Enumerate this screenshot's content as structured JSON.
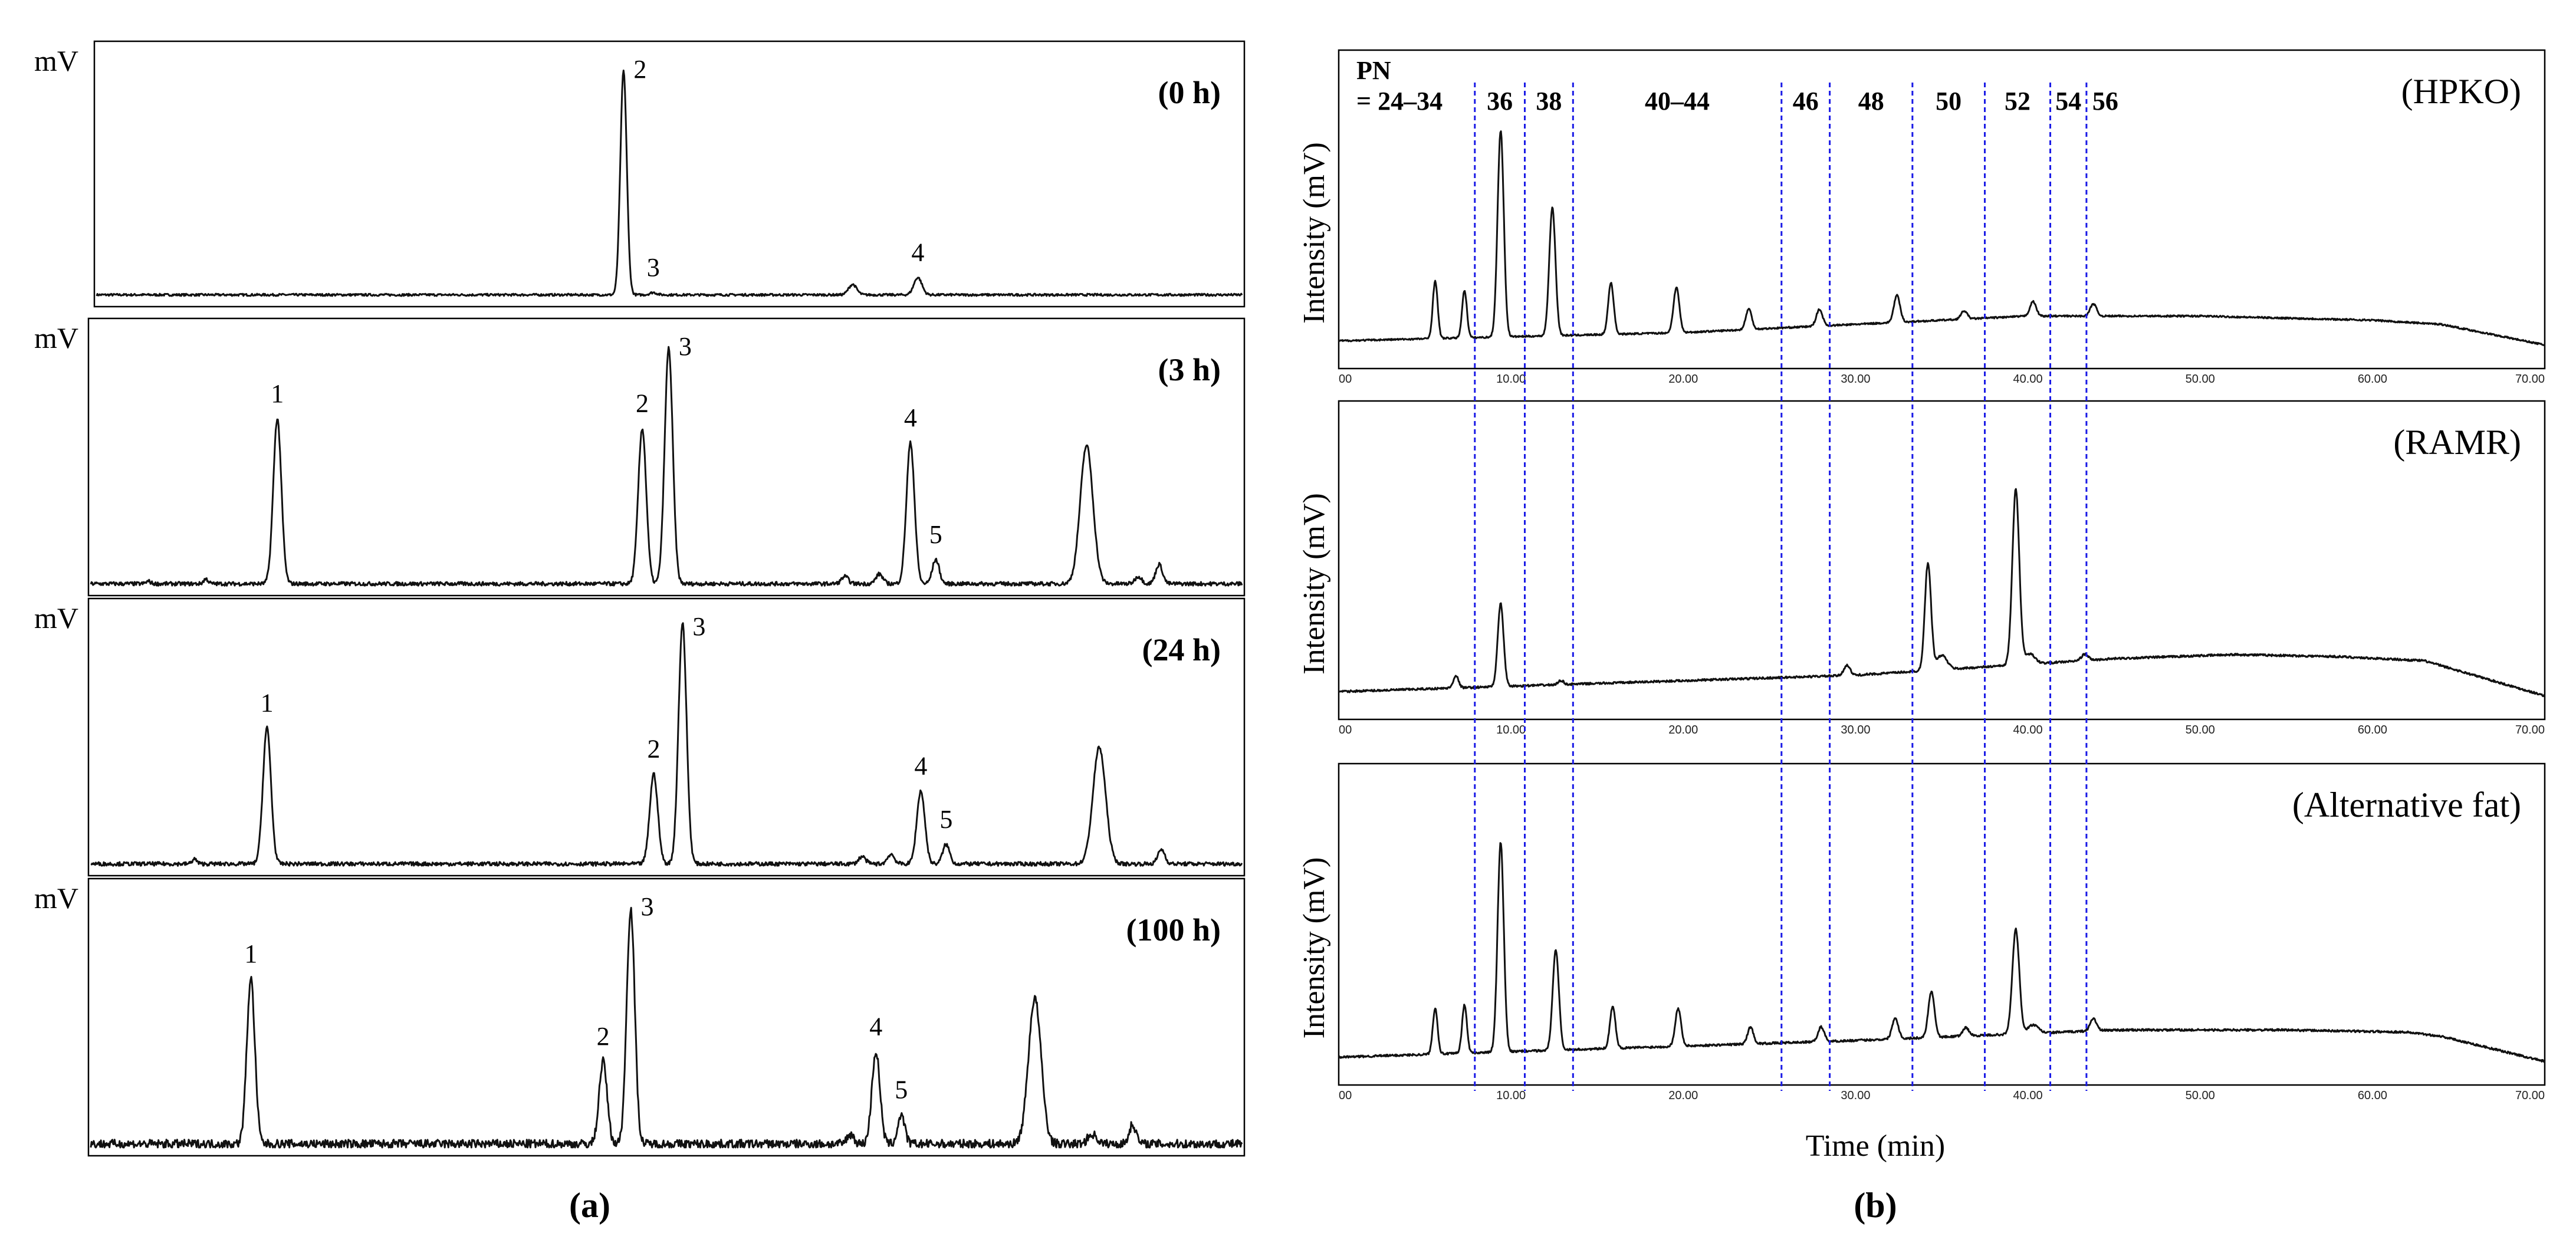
{
  "chart_data": [
    {
      "type": "line",
      "panel": "(a)",
      "caption": "(a)",
      "ylabel": "mV",
      "subplots": [
        {
          "label": "(0 h)",
          "noise": 0.005,
          "peaks": [
            {
              "x": 0.46,
              "h": 0.97,
              "w": 0.0028,
              "label": "2"
            },
            {
              "x": 0.486,
              "h": 0.01,
              "w": 0.003,
              "label": "3"
            },
            {
              "x": 0.66,
              "h": 0.045,
              "w": 0.0035,
              "label": ""
            },
            {
              "x": 0.717,
              "h": 0.075,
              "w": 0.0035,
              "label": "4"
            }
          ]
        },
        {
          "label": "(3 h)",
          "noise": 0.008,
          "peaks": [
            {
              "x": 0.05,
              "h": 0.01,
              "w": 0.002,
              "label": ""
            },
            {
              "x": 0.1,
              "h": 0.02,
              "w": 0.002,
              "label": ""
            },
            {
              "x": 0.162,
              "h": 0.68,
              "w": 0.0035,
              "label": "1"
            },
            {
              "x": 0.479,
              "h": 0.64,
              "w": 0.0035,
              "label": "2"
            },
            {
              "x": 0.502,
              "h": 0.97,
              "w": 0.0035,
              "label": "3"
            },
            {
              "x": 0.655,
              "h": 0.03,
              "w": 0.003,
              "label": ""
            },
            {
              "x": 0.685,
              "h": 0.04,
              "w": 0.003,
              "label": ""
            },
            {
              "x": 0.712,
              "h": 0.58,
              "w": 0.0035,
              "label": "4"
            },
            {
              "x": 0.734,
              "h": 0.1,
              "w": 0.003,
              "label": "5"
            },
            {
              "x": 0.865,
              "h": 0.57,
              "w": 0.0055,
              "label": ""
            },
            {
              "x": 0.91,
              "h": 0.03,
              "w": 0.003,
              "label": ""
            },
            {
              "x": 0.928,
              "h": 0.08,
              "w": 0.003,
              "label": ""
            }
          ]
        },
        {
          "label": "(24 h)",
          "noise": 0.008,
          "peaks": [
            {
              "x": 0.09,
              "h": 0.02,
              "w": 0.002,
              "label": ""
            },
            {
              "x": 0.153,
              "h": 0.56,
              "w": 0.0035,
              "label": "1"
            },
            {
              "x": 0.489,
              "h": 0.37,
              "w": 0.0035,
              "label": "2"
            },
            {
              "x": 0.514,
              "h": 0.99,
              "w": 0.0035,
              "label": "3"
            },
            {
              "x": 0.67,
              "h": 0.03,
              "w": 0.003,
              "label": ""
            },
            {
              "x": 0.695,
              "h": 0.04,
              "w": 0.003,
              "label": ""
            },
            {
              "x": 0.721,
              "h": 0.3,
              "w": 0.0035,
              "label": "4"
            },
            {
              "x": 0.743,
              "h": 0.08,
              "w": 0.003,
              "label": "5"
            },
            {
              "x": 0.876,
              "h": 0.48,
              "w": 0.0055,
              "label": ""
            },
            {
              "x": 0.93,
              "h": 0.06,
              "w": 0.003,
              "label": ""
            }
          ]
        },
        {
          "label": "(100 h)",
          "noise": 0.018,
          "peaks": [
            {
              "x": 0.139,
              "h": 0.68,
              "w": 0.0035,
              "label": "1"
            },
            {
              "x": 0.445,
              "h": 0.34,
              "w": 0.0035,
              "label": "2"
            },
            {
              "x": 0.469,
              "h": 0.97,
              "w": 0.0035,
              "label": "3"
            },
            {
              "x": 0.66,
              "h": 0.04,
              "w": 0.003,
              "label": ""
            },
            {
              "x": 0.682,
              "h": 0.38,
              "w": 0.0035,
              "label": "4"
            },
            {
              "x": 0.704,
              "h": 0.12,
              "w": 0.003,
              "label": "5"
            },
            {
              "x": 0.82,
              "h": 0.6,
              "w": 0.0055,
              "label": ""
            },
            {
              "x": 0.87,
              "h": 0.04,
              "w": 0.004,
              "label": ""
            },
            {
              "x": 0.905,
              "h": 0.08,
              "w": 0.003,
              "label": ""
            }
          ]
        }
      ]
    },
    {
      "type": "line",
      "panel": "(b)",
      "caption": "(b)",
      "xlabel": "Time (min)",
      "ylabel": "Intensity (mV)",
      "xlim": [
        0,
        70
      ],
      "xticks": [
        "00",
        "10.00",
        "20.00",
        "30.00",
        "40.00",
        "50.00",
        "60.00",
        "70.00"
      ],
      "pn_prefix": "PN",
      "pn_regions": [
        "= 24–34",
        "36",
        "38",
        "40–44",
        "46",
        "48",
        "50",
        "52",
        "54",
        "56"
      ],
      "dividers_min": [
        7.9,
        10.8,
        13.6,
        25.7,
        28.5,
        33.3,
        37.5,
        41.3,
        43.4
      ],
      "subplots": [
        {
          "label": "(HPKO)",
          "noise": 0.004,
          "baseline": [
            [
              0,
              0.02
            ],
            [
              20,
              0.06
            ],
            [
              40,
              0.14
            ],
            [
              50,
              0.14
            ],
            [
              60,
              0.12
            ],
            [
              64,
              0.1
            ],
            [
              70,
              0.0
            ]
          ],
          "peaks": [
            {
              "t": 5.6,
              "h": 0.28,
              "w": 0.14
            },
            {
              "t": 7.3,
              "h": 0.23,
              "w": 0.14
            },
            {
              "t": 9.4,
              "h": 1.0,
              "w": 0.18
            },
            {
              "t": 12.4,
              "h": 0.62,
              "w": 0.18
            },
            {
              "t": 15.8,
              "h": 0.25,
              "w": 0.16
            },
            {
              "t": 19.6,
              "h": 0.22,
              "w": 0.17
            },
            {
              "t": 23.8,
              "h": 0.1,
              "w": 0.17
            },
            {
              "t": 27.9,
              "h": 0.08,
              "w": 0.18
            },
            {
              "t": 32.4,
              "h": 0.13,
              "w": 0.18
            },
            {
              "t": 36.3,
              "h": 0.04,
              "w": 0.18
            },
            {
              "t": 40.3,
              "h": 0.07,
              "w": 0.18
            },
            {
              "t": 43.8,
              "h": 0.06,
              "w": 0.18
            }
          ]
        },
        {
          "label": "(RAMR)",
          "noise": 0.005,
          "baseline": [
            [
              0,
              0.02
            ],
            [
              30,
              0.1
            ],
            [
              45,
              0.18
            ],
            [
              52,
              0.2
            ],
            [
              58,
              0.19
            ],
            [
              63,
              0.17
            ],
            [
              70,
              0.0
            ]
          ],
          "peaks": [
            {
              "t": 6.8,
              "h": 0.06,
              "w": 0.15
            },
            {
              "t": 9.4,
              "h": 0.4,
              "w": 0.17
            },
            {
              "t": 12.9,
              "h": 0.02,
              "w": 0.15
            },
            {
              "t": 29.5,
              "h": 0.05,
              "w": 0.18
            },
            {
              "t": 34.2,
              "h": 0.52,
              "w": 0.18
            },
            {
              "t": 35.0,
              "h": 0.07,
              "w": 0.3
            },
            {
              "t": 39.3,
              "h": 0.85,
              "w": 0.2
            },
            {
              "t": 40.1,
              "h": 0.05,
              "w": 0.3
            },
            {
              "t": 43.3,
              "h": 0.03,
              "w": 0.2
            }
          ]
        },
        {
          "label": "(Alternative fat)",
          "noise": 0.005,
          "baseline": [
            [
              0,
              0.02
            ],
            [
              30,
              0.1
            ],
            [
              45,
              0.15
            ],
            [
              55,
              0.15
            ],
            [
              62,
              0.14
            ],
            [
              64,
              0.12
            ],
            [
              70,
              0.0
            ]
          ],
          "peaks": [
            {
              "t": 5.6,
              "h": 0.22,
              "w": 0.14
            },
            {
              "t": 7.3,
              "h": 0.23,
              "w": 0.14
            },
            {
              "t": 9.4,
              "h": 1.0,
              "w": 0.18
            },
            {
              "t": 12.6,
              "h": 0.48,
              "w": 0.18
            },
            {
              "t": 15.9,
              "h": 0.2,
              "w": 0.16
            },
            {
              "t": 19.7,
              "h": 0.18,
              "w": 0.17
            },
            {
              "t": 23.9,
              "h": 0.08,
              "w": 0.17
            },
            {
              "t": 28.0,
              "h": 0.07,
              "w": 0.18
            },
            {
              "t": 32.3,
              "h": 0.1,
              "w": 0.18
            },
            {
              "t": 34.4,
              "h": 0.22,
              "w": 0.18
            },
            {
              "t": 36.4,
              "h": 0.04,
              "w": 0.18
            },
            {
              "t": 39.3,
              "h": 0.5,
              "w": 0.2
            },
            {
              "t": 40.3,
              "h": 0.04,
              "w": 0.3
            },
            {
              "t": 43.8,
              "h": 0.06,
              "w": 0.18
            }
          ]
        }
      ]
    }
  ]
}
